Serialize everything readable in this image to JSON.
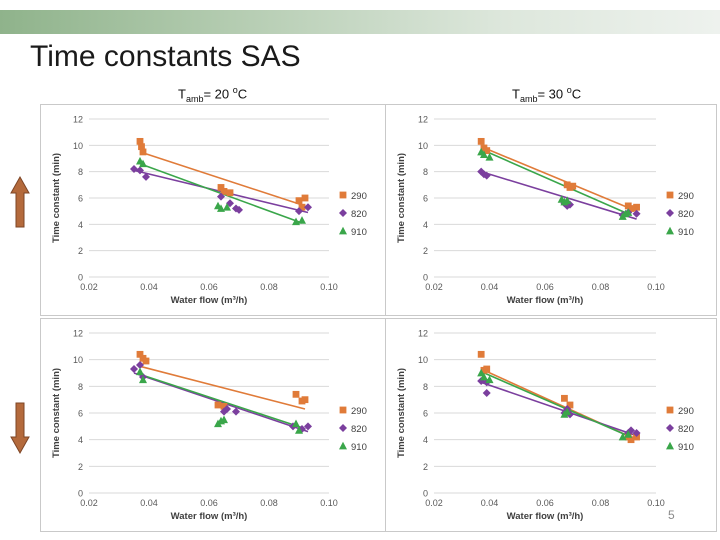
{
  "slide": {
    "title": "Time constants SAS",
    "page_number": "5",
    "conditions": [
      {
        "prefix": "T",
        "sub": "amb",
        "mid": "= 20 ",
        "sup": "o",
        "suffix": "C"
      },
      {
        "prefix": "T",
        "sub": "amb",
        "mid": "= 30 ",
        "sup": "o",
        "suffix": "C"
      }
    ],
    "arrows": [
      {
        "direction": "up",
        "color": "#b46a3c"
      },
      {
        "direction": "down",
        "color": "#b46a3c"
      }
    ]
  },
  "colors": {
    "290": "#e07b39",
    "820": "#7b3f9e",
    "910": "#3aa64a"
  },
  "chart_data": [
    {
      "type": "scatter",
      "position": "top-left",
      "xlabel": "Water flow (m³/h)",
      "ylabel": "Time constant (min)",
      "xlim": [
        0.02,
        0.1
      ],
      "ylim": [
        0,
        12
      ],
      "xticks": [
        "0.02",
        "0.04",
        "0.06",
        "0.08",
        "0.10"
      ],
      "yticks": [
        "0",
        "2",
        "4",
        "6",
        "8",
        "10",
        "12"
      ],
      "legend": "right",
      "series": [
        {
          "name": "290",
          "marker": "square",
          "points": [
            [
              0.037,
              10.3
            ],
            [
              0.0375,
              9.9
            ],
            [
              0.038,
              9.5
            ],
            [
              0.064,
              6.8
            ],
            [
              0.065,
              6.5
            ],
            [
              0.067,
              6.4
            ],
            [
              0.09,
              5.8
            ],
            [
              0.091,
              5.3
            ],
            [
              0.092,
              6.0
            ]
          ],
          "trend": [
            [
              0.037,
              9.5
            ],
            [
              0.092,
              5.4
            ]
          ]
        },
        {
          "name": "820",
          "marker": "diamond",
          "points": [
            [
              0.035,
              8.2
            ],
            [
              0.037,
              8.1
            ],
            [
              0.039,
              7.6
            ],
            [
              0.064,
              6.1
            ],
            [
              0.067,
              5.6
            ],
            [
              0.069,
              5.2
            ],
            [
              0.07,
              5.1
            ],
            [
              0.09,
              5.0
            ],
            [
              0.093,
              5.3
            ]
          ],
          "trend": [
            [
              0.035,
              8.1
            ],
            [
              0.093,
              4.9
            ]
          ]
        },
        {
          "name": "910",
          "marker": "triangle",
          "points": [
            [
              0.037,
              8.8
            ],
            [
              0.038,
              8.6
            ],
            [
              0.063,
              5.4
            ],
            [
              0.064,
              5.2
            ],
            [
              0.066,
              5.3
            ],
            [
              0.089,
              4.2
            ],
            [
              0.091,
              4.3
            ]
          ],
          "trend": [
            [
              0.037,
              8.6
            ],
            [
              0.091,
              4.1
            ]
          ]
        }
      ]
    },
    {
      "type": "scatter",
      "position": "top-right",
      "xlabel": "Water flow (m³/h)",
      "ylabel": "Time constant (min)",
      "xlim": [
        0.02,
        0.1
      ],
      "ylim": [
        0,
        12
      ],
      "xticks": [
        "0.02",
        "0.04",
        "0.06",
        "0.08",
        "0.10"
      ],
      "yticks": [
        "0",
        "2",
        "4",
        "6",
        "8",
        "10",
        "12"
      ],
      "legend": "right",
      "series": [
        {
          "name": "290",
          "marker": "square",
          "points": [
            [
              0.037,
              10.3
            ],
            [
              0.038,
              9.8
            ],
            [
              0.039,
              9.6
            ],
            [
              0.068,
              7.0
            ],
            [
              0.069,
              6.8
            ],
            [
              0.07,
              6.9
            ],
            [
              0.09,
              5.4
            ],
            [
              0.091,
              5.2
            ],
            [
              0.093,
              5.3
            ]
          ],
          "trend": [
            [
              0.037,
              9.9
            ],
            [
              0.093,
              5.0
            ]
          ]
        },
        {
          "name": "820",
          "marker": "diamond",
          "points": [
            [
              0.037,
              8.0
            ],
            [
              0.038,
              7.8
            ],
            [
              0.039,
              7.7
            ],
            [
              0.067,
              5.6
            ],
            [
              0.068,
              5.4
            ],
            [
              0.069,
              5.5
            ],
            [
              0.088,
              4.7
            ],
            [
              0.09,
              4.9
            ],
            [
              0.093,
              4.8
            ]
          ],
          "trend": [
            [
              0.037,
              8.0
            ],
            [
              0.093,
              4.4
            ]
          ]
        },
        {
          "name": "910",
          "marker": "triangle",
          "points": [
            [
              0.037,
              9.5
            ],
            [
              0.038,
              9.3
            ],
            [
              0.04,
              9.1
            ],
            [
              0.066,
              5.9
            ],
            [
              0.067,
              5.7
            ],
            [
              0.068,
              5.8
            ],
            [
              0.088,
              4.6
            ],
            [
              0.089,
              4.8
            ],
            [
              0.09,
              4.9
            ]
          ],
          "trend": [
            [
              0.037,
              9.7
            ],
            [
              0.091,
              4.7
            ]
          ]
        }
      ]
    },
    {
      "type": "scatter",
      "position": "bottom-left",
      "xlabel": "Water flow (m³/h)",
      "ylabel": "Time constant (min)",
      "xlim": [
        0.02,
        0.1
      ],
      "ylim": [
        0,
        12
      ],
      "xticks": [
        "0.02",
        "0.04",
        "0.06",
        "0.08",
        "0.10"
      ],
      "yticks": [
        "0",
        "2",
        "4",
        "6",
        "8",
        "10",
        "12"
      ],
      "legend": "right",
      "series": [
        {
          "name": "290",
          "marker": "square",
          "points": [
            [
              0.037,
              10.4
            ],
            [
              0.038,
              10.1
            ],
            [
              0.039,
              9.9
            ],
            [
              0.063,
              6.6
            ],
            [
              0.065,
              6.5
            ],
            [
              0.089,
              7.4
            ],
            [
              0.091,
              6.9
            ],
            [
              0.092,
              7.0
            ]
          ],
          "trend": [
            [
              0.037,
              9.5
            ],
            [
              0.092,
              6.3
            ]
          ]
        },
        {
          "name": "820",
          "marker": "diamond",
          "points": [
            [
              0.035,
              9.3
            ],
            [
              0.037,
              9.6
            ],
            [
              0.038,
              8.7
            ],
            [
              0.065,
              6.1
            ],
            [
              0.066,
              6.3
            ],
            [
              0.069,
              6.1
            ],
            [
              0.088,
              5.0
            ],
            [
              0.091,
              4.8
            ],
            [
              0.093,
              5.0
            ]
          ],
          "trend": [
            [
              0.035,
              9.0
            ],
            [
              0.093,
              4.6
            ]
          ]
        },
        {
          "name": "910",
          "marker": "triangle",
          "points": [
            [
              0.037,
              9.1
            ],
            [
              0.038,
              8.5
            ],
            [
              0.063,
              5.2
            ],
            [
              0.064,
              5.4
            ],
            [
              0.065,
              5.5
            ],
            [
              0.089,
              5.2
            ],
            [
              0.09,
              4.7
            ]
          ],
          "trend": [
            [
              0.037,
              8.9
            ],
            [
              0.091,
              4.9
            ]
          ]
        }
      ]
    },
    {
      "type": "scatter",
      "position": "bottom-right",
      "xlabel": "Water flow (m³/h)",
      "ylabel": "Time constant (min)",
      "xlim": [
        0.02,
        0.1
      ],
      "ylim": [
        0,
        12
      ],
      "xticks": [
        "0.02",
        "0.04",
        "0.06",
        "0.08",
        "0.10"
      ],
      "yticks": [
        "0",
        "2",
        "4",
        "6",
        "8",
        "10",
        "12"
      ],
      "legend": "right",
      "series": [
        {
          "name": "290",
          "marker": "square",
          "points": [
            [
              0.037,
              10.4
            ],
            [
              0.038,
              9.2
            ],
            [
              0.039,
              9.3
            ],
            [
              0.067,
              7.1
            ],
            [
              0.069,
              6.6
            ],
            [
              0.09,
              4.2
            ],
            [
              0.091,
              4.0
            ],
            [
              0.093,
              4.2
            ]
          ],
          "trend": [
            [
              0.037,
              9.3
            ],
            [
              0.093,
              4.0
            ]
          ]
        },
        {
          "name": "820",
          "marker": "diamond",
          "points": [
            [
              0.037,
              8.4
            ],
            [
              0.039,
              8.3
            ],
            [
              0.039,
              7.5
            ],
            [
              0.067,
              6.0
            ],
            [
              0.068,
              6.3
            ],
            [
              0.069,
              5.9
            ],
            [
              0.09,
              4.5
            ],
            [
              0.091,
              4.7
            ],
            [
              0.093,
              4.5
            ]
          ],
          "trend": [
            [
              0.037,
              8.3
            ],
            [
              0.093,
              4.3
            ]
          ]
        },
        {
          "name": "910",
          "marker": "triangle",
          "points": [
            [
              0.037,
              9.0
            ],
            [
              0.038,
              8.7
            ],
            [
              0.04,
              8.5
            ],
            [
              0.067,
              5.9
            ],
            [
              0.068,
              6.1
            ],
            [
              0.088,
              4.2
            ],
            [
              0.09,
              4.4
            ]
          ],
          "trend": [
            [
              0.037,
              9.1
            ],
            [
              0.092,
              4.1
            ]
          ]
        }
      ]
    }
  ]
}
